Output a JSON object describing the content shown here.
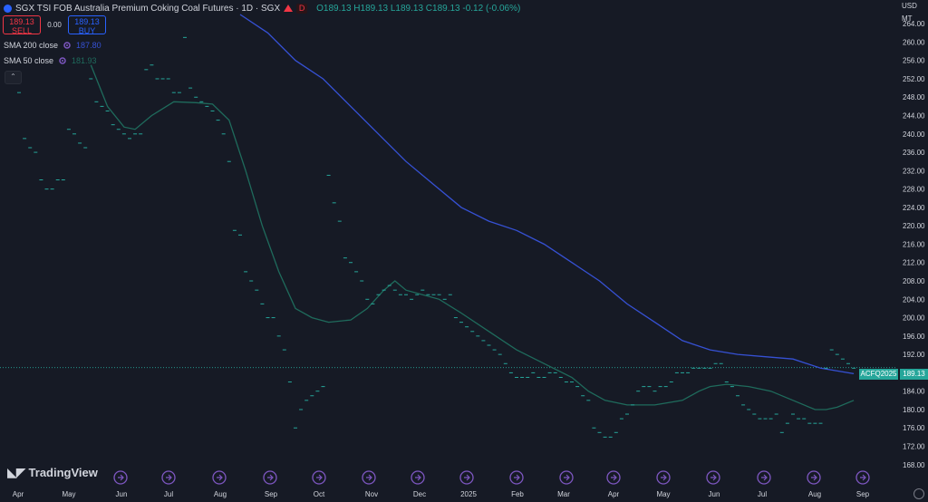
{
  "header": {
    "title": "SGX TSI FOB Australia Premium Coking Coal Futures · 1D · SGX",
    "ohlc": "O189.13 H189.13 L189.13 C189.13 -0.12 (-0.06%)",
    "badge": "D"
  },
  "trade": {
    "sell_price": "189.13",
    "sell_label": "SELL",
    "spread": "0.00",
    "buy_price": "189.13",
    "buy_label": "BUY"
  },
  "indicators": [
    {
      "name": "SMA 200 close",
      "value": "187.80",
      "color": "#3651d4"
    },
    {
      "name": "SMA 50 close",
      "value": "181.93",
      "color": "#1f6b5c"
    }
  ],
  "axis_top": {
    "currency": "USD",
    "unit": "MT"
  },
  "price_labels": {
    "symbol": "ACFQ2025",
    "last": "189.13"
  },
  "logo": {
    "text": "TradingView"
  },
  "chart_data": {
    "type": "line",
    "ylim": [
      165,
      266
    ],
    "y_ticks": [
      168,
      172,
      176,
      180,
      184,
      188,
      192,
      196,
      200,
      204,
      208,
      212,
      216,
      220,
      224,
      228,
      232,
      236,
      240,
      244,
      248,
      252,
      256,
      260,
      264
    ],
    "x_ticks": [
      "Apr",
      "May",
      "Jun",
      "Jul",
      "Aug",
      "Sep",
      "Oct",
      "Nov",
      "Dec",
      "2025",
      "Feb",
      "Mar",
      "Apr",
      "May",
      "Jun",
      "Jul",
      "Aug",
      "Sep"
    ],
    "last_price": 189.13,
    "price_points": [
      [
        0,
        249
      ],
      [
        1,
        239
      ],
      [
        2,
        237
      ],
      [
        3,
        236
      ],
      [
        4,
        230
      ],
      [
        5,
        228
      ],
      [
        6,
        228
      ],
      [
        7,
        230
      ],
      [
        8,
        230
      ],
      [
        9,
        241
      ],
      [
        10,
        240
      ],
      [
        11,
        238
      ],
      [
        12,
        237
      ],
      [
        13,
        252
      ],
      [
        14,
        247
      ],
      [
        15,
        246
      ],
      [
        16,
        245
      ],
      [
        17,
        242
      ],
      [
        18,
        241
      ],
      [
        19,
        240
      ],
      [
        20,
        239
      ],
      [
        21,
        240
      ],
      [
        22,
        240
      ],
      [
        23,
        254
      ],
      [
        24,
        255
      ],
      [
        25,
        252
      ],
      [
        26,
        252
      ],
      [
        27,
        252
      ],
      [
        28,
        249
      ],
      [
        29,
        249
      ],
      [
        30,
        261
      ],
      [
        31,
        250
      ],
      [
        32,
        248
      ],
      [
        33,
        247
      ],
      [
        34,
        246
      ],
      [
        35,
        245
      ],
      [
        36,
        243
      ],
      [
        37,
        240
      ],
      [
        38,
        234
      ],
      [
        39,
        219
      ],
      [
        40,
        218
      ],
      [
        41,
        210
      ],
      [
        42,
        208
      ],
      [
        43,
        206
      ],
      [
        44,
        203
      ],
      [
        45,
        200
      ],
      [
        46,
        200
      ],
      [
        47,
        196
      ],
      [
        48,
        193
      ],
      [
        49,
        186
      ],
      [
        50,
        176
      ],
      [
        51,
        180
      ],
      [
        52,
        182
      ],
      [
        53,
        183
      ],
      [
        54,
        184
      ],
      [
        55,
        185
      ],
      [
        56,
        231
      ],
      [
        57,
        225
      ],
      [
        58,
        221
      ],
      [
        59,
        213
      ],
      [
        60,
        212
      ],
      [
        61,
        210
      ],
      [
        62,
        208
      ],
      [
        63,
        204
      ],
      [
        64,
        203
      ],
      [
        65,
        205
      ],
      [
        66,
        206
      ],
      [
        67,
        207
      ],
      [
        68,
        206
      ],
      [
        69,
        205
      ],
      [
        70,
        205
      ],
      [
        71,
        204
      ],
      [
        72,
        205
      ],
      [
        73,
        206
      ],
      [
        74,
        205
      ],
      [
        75,
        205
      ],
      [
        76,
        205
      ],
      [
        77,
        204
      ],
      [
        78,
        205
      ],
      [
        79,
        200
      ],
      [
        80,
        199
      ],
      [
        81,
        198
      ],
      [
        82,
        197
      ],
      [
        83,
        196
      ],
      [
        84,
        195
      ],
      [
        85,
        194
      ],
      [
        86,
        193
      ],
      [
        87,
        192
      ],
      [
        88,
        190
      ],
      [
        89,
        188
      ],
      [
        90,
        187
      ],
      [
        91,
        187
      ],
      [
        92,
        187
      ],
      [
        93,
        188
      ],
      [
        94,
        187
      ],
      [
        95,
        187
      ],
      [
        96,
        188
      ],
      [
        97,
        188
      ],
      [
        98,
        187
      ],
      [
        99,
        186
      ],
      [
        100,
        186
      ],
      [
        101,
        185
      ],
      [
        102,
        183
      ],
      [
        103,
        182
      ],
      [
        104,
        176
      ],
      [
        105,
        175
      ],
      [
        106,
        174
      ],
      [
        107,
        174
      ],
      [
        108,
        175
      ],
      [
        109,
        178
      ],
      [
        110,
        179
      ],
      [
        111,
        181
      ],
      [
        112,
        184
      ],
      [
        113,
        185
      ],
      [
        114,
        185
      ],
      [
        115,
        184
      ],
      [
        116,
        185
      ],
      [
        117,
        185
      ],
      [
        118,
        186
      ],
      [
        119,
        188
      ],
      [
        120,
        188
      ],
      [
        121,
        188
      ],
      [
        122,
        189
      ],
      [
        123,
        189
      ],
      [
        124,
        189
      ],
      [
        125,
        189
      ],
      [
        126,
        190
      ],
      [
        127,
        190
      ],
      [
        128,
        186
      ],
      [
        129,
        185
      ],
      [
        130,
        183
      ],
      [
        131,
        181
      ],
      [
        132,
        180
      ],
      [
        133,
        179
      ],
      [
        134,
        178
      ],
      [
        135,
        178
      ],
      [
        136,
        178
      ],
      [
        137,
        179
      ],
      [
        138,
        175
      ],
      [
        139,
        177
      ],
      [
        140,
        179
      ],
      [
        141,
        178
      ],
      [
        142,
        178
      ],
      [
        143,
        177
      ],
      [
        144,
        177
      ],
      [
        145,
        177
      ],
      [
        146,
        189
      ],
      [
        147,
        193
      ],
      [
        148,
        192
      ],
      [
        149,
        191
      ],
      [
        150,
        190
      ],
      [
        151,
        189
      ]
    ],
    "series": [
      {
        "name": "SMA 200 close",
        "color": "#3651d4",
        "points": [
          [
            40,
            266
          ],
          [
            45,
            262
          ],
          [
            50,
            256
          ],
          [
            55,
            252
          ],
          [
            60,
            246
          ],
          [
            65,
            240
          ],
          [
            70,
            234
          ],
          [
            75,
            229
          ],
          [
            80,
            224
          ],
          [
            85,
            221
          ],
          [
            90,
            219
          ],
          [
            95,
            216
          ],
          [
            100,
            212
          ],
          [
            105,
            208
          ],
          [
            110,
            203
          ],
          [
            115,
            199
          ],
          [
            120,
            195
          ],
          [
            125,
            193
          ],
          [
            130,
            192
          ],
          [
            135,
            191.5
          ],
          [
            140,
            191
          ],
          [
            145,
            189
          ],
          [
            150,
            188
          ],
          [
            151,
            187.8
          ]
        ]
      },
      {
        "name": "SMA 50 close",
        "color": "#1f6b5c",
        "points": [
          [
            13,
            255
          ],
          [
            16,
            246
          ],
          [
            19,
            241.5
          ],
          [
            21,
            241
          ],
          [
            24,
            244
          ],
          [
            28,
            247
          ],
          [
            32,
            246.8
          ],
          [
            35,
            246.5
          ],
          [
            38,
            243
          ],
          [
            41,
            232
          ],
          [
            44,
            220
          ],
          [
            47,
            210
          ],
          [
            50,
            202
          ],
          [
            53,
            200
          ],
          [
            56,
            199
          ],
          [
            60,
            199.5
          ],
          [
            63,
            202
          ],
          [
            66,
            206
          ],
          [
            68,
            208
          ],
          [
            70,
            206
          ],
          [
            73,
            205
          ],
          [
            76,
            204
          ],
          [
            80,
            201
          ],
          [
            85,
            197
          ],
          [
            90,
            193
          ],
          [
            95,
            190
          ],
          [
            100,
            187
          ],
          [
            103,
            184
          ],
          [
            106,
            182
          ],
          [
            110,
            181
          ],
          [
            115,
            181
          ],
          [
            120,
            182
          ],
          [
            123,
            184
          ],
          [
            125,
            185
          ],
          [
            128,
            185.5
          ],
          [
            132,
            185
          ],
          [
            136,
            184
          ],
          [
            140,
            182
          ],
          [
            144,
            180
          ],
          [
            146,
            180
          ],
          [
            148,
            180.5
          ],
          [
            151,
            182
          ]
        ]
      }
    ]
  }
}
